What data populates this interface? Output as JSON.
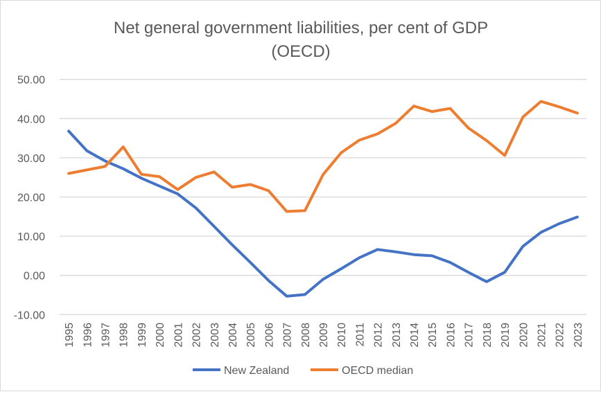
{
  "chart_data": {
    "type": "line",
    "title": "Net general government liabilities, per cent of GDP",
    "subtitle": "(OECD)",
    "xlabel": "",
    "ylabel": "",
    "ylim": [
      -10,
      50
    ],
    "yticks": [
      "-10.00",
      "0.00",
      "10.00",
      "20.00",
      "30.00",
      "40.00",
      "50.00"
    ],
    "grid": true,
    "legend": "bottom",
    "categories": [
      "1995",
      "1996",
      "1997",
      "1998",
      "1999",
      "2000",
      "2001",
      "2002",
      "2003",
      "2004",
      "2005",
      "2006",
      "2007",
      "2008",
      "2009",
      "2010",
      "2011",
      "2012",
      "2013",
      "2014",
      "2015",
      "2016",
      "2017",
      "2018",
      "2019",
      "2020",
      "2021",
      "2022",
      "2023"
    ],
    "series": [
      {
        "name": "New Zealand",
        "color": "#4472C4",
        "values": [
          36.8,
          31.8,
          29.2,
          27.2,
          24.8,
          22.8,
          20.8,
          17.2,
          12.5,
          7.8,
          3.3,
          -1.3,
          -5.3,
          -4.9,
          -1.0,
          1.7,
          4.5,
          6.6,
          6.0,
          5.3,
          5.0,
          3.3,
          0.8,
          -1.6,
          0.8,
          7.4,
          11.0,
          13.2,
          14.9
        ]
      },
      {
        "name": "OECD median",
        "color": "#ED7D31",
        "values": [
          26.0,
          26.9,
          27.8,
          32.8,
          25.8,
          25.2,
          21.9,
          25.0,
          26.4,
          22.5,
          23.2,
          21.6,
          16.3,
          16.5,
          25.7,
          31.3,
          34.5,
          36.1,
          38.8,
          43.2,
          41.8,
          42.6,
          37.6,
          34.4,
          30.6,
          40.4,
          44.4,
          43.0,
          41.4
        ]
      }
    ]
  }
}
